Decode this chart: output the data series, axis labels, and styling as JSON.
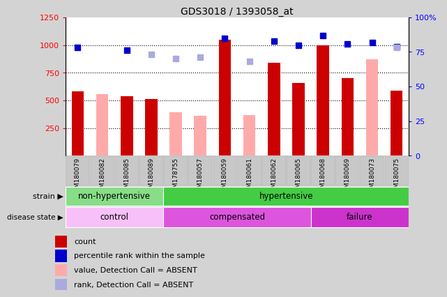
{
  "title": "GDS3018 / 1393058_at",
  "samples": [
    "GSM180079",
    "GSM180082",
    "GSM180085",
    "GSM180089",
    "GSM178755",
    "GSM180057",
    "GSM180059",
    "GSM180061",
    "GSM180062",
    "GSM180065",
    "GSM180068",
    "GSM180069",
    "GSM180073",
    "GSM180075"
  ],
  "count": [
    580,
    null,
    540,
    510,
    null,
    null,
    1050,
    null,
    840,
    655,
    1000,
    700,
    null,
    590
  ],
  "count_absent": [
    null,
    555,
    null,
    null,
    390,
    360,
    null,
    370,
    null,
    null,
    null,
    null,
    870,
    null
  ],
  "percentile": [
    78,
    null,
    76,
    null,
    null,
    null,
    85,
    null,
    83,
    80,
    87,
    81,
    82,
    79
  ],
  "percentile_absent": [
    null,
    null,
    null,
    73,
    70,
    71,
    null,
    68,
    null,
    null,
    null,
    null,
    null,
    78
  ],
  "ylim_left": [
    0,
    1250
  ],
  "ylim_right": [
    0,
    100
  ],
  "yticks_left": [
    250,
    500,
    750,
    1000,
    1250
  ],
  "yticks_right": [
    0,
    25,
    50,
    75,
    100
  ],
  "strain_groups": [
    {
      "label": "non-hypertensive",
      "start": 0,
      "end": 4,
      "color": "#88dd88"
    },
    {
      "label": "hypertensive",
      "start": 4,
      "end": 14,
      "color": "#44cc44"
    }
  ],
  "disease_colors": [
    "#f8c0f8",
    "#dd55dd",
    "#cc33cc"
  ],
  "disease_groups": [
    {
      "label": "control",
      "start": 0,
      "end": 4
    },
    {
      "label": "compensated",
      "start": 4,
      "end": 10
    },
    {
      "label": "failure",
      "start": 10,
      "end": 14
    }
  ],
  "bar_width": 0.5,
  "count_color": "#cc0000",
  "count_absent_color": "#ffaaaa",
  "percentile_color": "#0000cc",
  "percentile_absent_color": "#aaaadd",
  "bg_color": "#d3d3d3",
  "plot_bg": "#ffffff",
  "ticklabel_bg": "#c8c8c8",
  "hline_values": [
    250,
    500,
    750,
    1000
  ],
  "legend_labels": [
    "count",
    "percentile rank within the sample",
    "value, Detection Call = ABSENT",
    "rank, Detection Call = ABSENT"
  ],
  "legend_colors": [
    "#cc0000",
    "#0000cc",
    "#ffaaaa",
    "#aaaadd"
  ]
}
